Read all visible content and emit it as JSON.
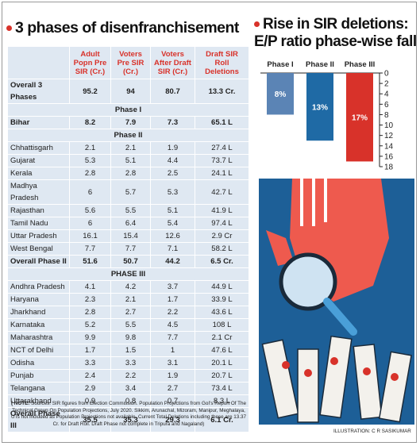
{
  "header": {
    "title": "3 phases of disenfranchisement"
  },
  "table": {
    "columns": [
      "Adult Popn Pre SIR (Cr.)",
      "Voters Pre SIR (Cr.)",
      "Voters After Draft SIR (Cr.)",
      "Draft SIR Roll Deletions"
    ],
    "rows": [
      [
        "Overall 3 Phases",
        "95.2",
        "94",
        "80.7",
        "13.3 Cr."
      ],
      [
        "Phase I"
      ],
      [
        "Bihar",
        "8.2",
        "7.9",
        "7.3",
        "65.1 L"
      ],
      [
        "Phase II"
      ],
      [
        "Chhattisgarh",
        "2.1",
        "2.1",
        "1.9",
        "27.4 L"
      ],
      [
        "Gujarat",
        "5.3",
        "5.1",
        "4.4",
        "73.7 L"
      ],
      [
        "Kerala",
        "2.8",
        "2.8",
        "2.5",
        "24.1 L"
      ],
      [
        "Madhya Pradesh",
        "6",
        "5.7",
        "5.3",
        "42.7 L"
      ],
      [
        "Rajasthan",
        "5.6",
        "5.5",
        "5.1",
        "41.9 L"
      ],
      [
        "Tamil Nadu",
        "6",
        "6.4",
        "5.4",
        "97.4 L"
      ],
      [
        "Uttar Pradesh",
        "16.1",
        "15.4",
        "12.6",
        "2.9 Cr"
      ],
      [
        "West Bengal",
        "7.7",
        "7.7",
        "7.1",
        "58.2 L"
      ],
      [
        "Overall Phase II",
        "51.6",
        "50.7",
        "44.2",
        "6.5 Cr."
      ],
      [
        "PHASE III"
      ],
      [
        "Andhra Pradesh",
        "4.1",
        "4.2",
        "3.7",
        "44.9 L"
      ],
      [
        "Haryana",
        "2.3",
        "2.1",
        "1.7",
        "33.9 L"
      ],
      [
        "Jharkhand",
        "2.8",
        "2.7",
        "2.2",
        "43.6 L"
      ],
      [
        "Karnataka",
        "5.2",
        "5.5",
        "4.5",
        "108 L"
      ],
      [
        "Maharashtra",
        "9.9",
        "9.8",
        "7.7",
        "2.1 Cr"
      ],
      [
        "NCT of Delhi",
        "1.7",
        "1.5",
        "1",
        "47.6 L"
      ],
      [
        "Odisha",
        "3.3",
        "3.3",
        "3.1",
        "20.1 L"
      ],
      [
        "Punjab",
        "2.4",
        "2.2",
        "1.9",
        "20.7 L"
      ],
      [
        "Telangana",
        "2.9",
        "3.4",
        "2.7",
        "73.4 L"
      ],
      [
        "Uttarakhand",
        "0.9",
        "0.8",
        "0.7",
        "8.3 L"
      ],
      [
        "Overall Phase III",
        "35.5",
        "35.3",
        "29.3",
        "6.1 Cr."
      ]
    ]
  },
  "note": {
    "label": "( NOTE:",
    "text": "Sources: SIR figures from Election Commission. Population Projections from GoI's Report Of The Technical Group On Population Projections, July 2020. Sikkim, Arunachal, Mizoram, Manipur, Meghalaya, UTs not included as Population Projections not available. Current Total Deletions including these are 13.37 Cr. for Draft Roll. Draft Phase not complete in Tripura and Nagaland)"
  },
  "credit": "ILLUSTRATION: C R SASIKUMAR",
  "chart_data": {
    "type": "bar",
    "title": "Rise in SIR deletions: E/P ratio phase-wise fall",
    "categories": [
      "Phase I",
      "Phase II",
      "Phase III"
    ],
    "values": [
      8,
      13,
      17
    ],
    "value_labels": [
      "8%",
      "13%",
      "17%"
    ],
    "colors": [
      "#5b84b5",
      "#1f6aa5",
      "#d8322a"
    ],
    "ylim": [
      0,
      18
    ],
    "yticks": [
      0,
      2,
      4,
      6,
      8,
      10,
      12,
      14,
      16,
      18
    ],
    "inverted": true
  }
}
